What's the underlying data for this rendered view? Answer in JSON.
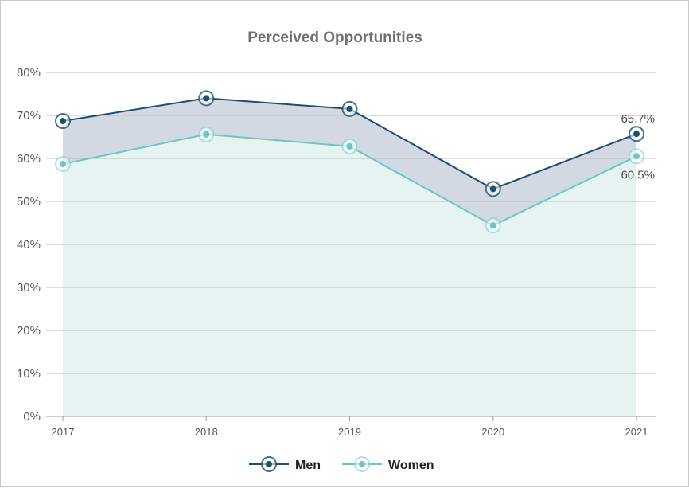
{
  "chart_data": {
    "type": "line",
    "title": "Perceived Opportunities",
    "xlabel": "",
    "ylabel": "",
    "categories": [
      "2017",
      "2018",
      "2019",
      "2020",
      "2021"
    ],
    "ylim": [
      0,
      80
    ],
    "y_ticks": [
      0,
      10,
      20,
      30,
      40,
      50,
      60,
      70,
      80
    ],
    "y_tick_suffix": "%",
    "grid": true,
    "legend_position": "bottom",
    "series": [
      {
        "name": "Men",
        "values": [
          68.7,
          74.0,
          71.5,
          52.9,
          65.7
        ],
        "color": "#1f4e6e"
      },
      {
        "name": "Women",
        "values": [
          58.7,
          65.6,
          62.8,
          44.4,
          60.5
        ],
        "color": "#6fc4c4"
      }
    ],
    "data_labels": [
      {
        "series": "Men",
        "category": "2021",
        "text": "65.7%"
      },
      {
        "series": "Women",
        "category": "2021",
        "text": "60.5%"
      }
    ],
    "fills": {
      "between_series": "#d3d9e2",
      "under_women": "#e5f3f3"
    }
  }
}
